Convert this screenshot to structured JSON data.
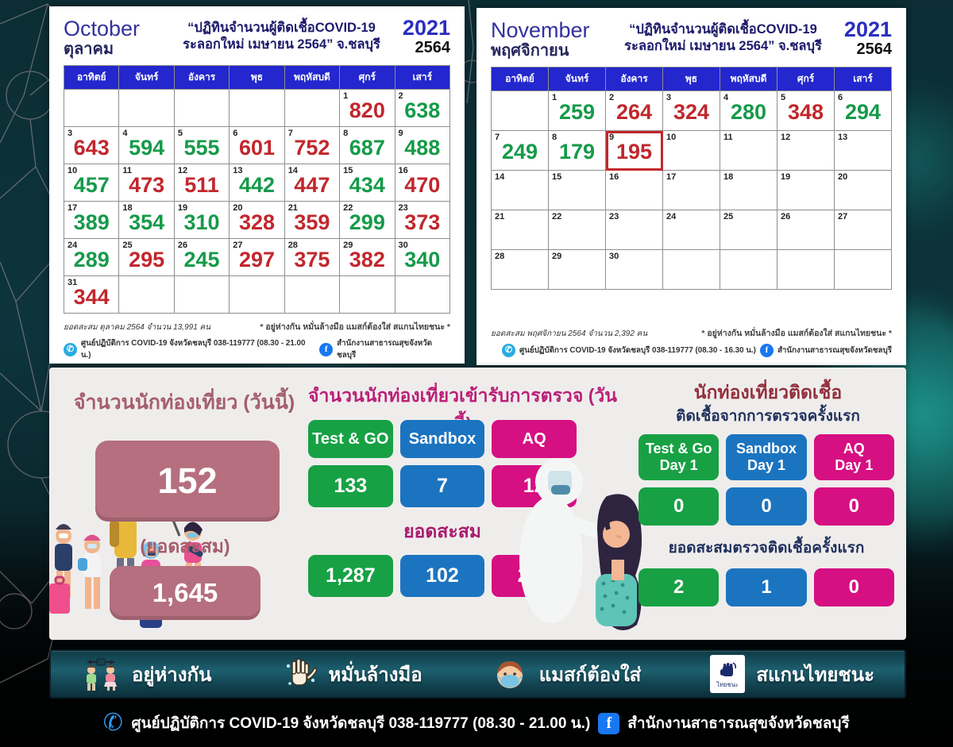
{
  "calendars": [
    {
      "month_en": "October",
      "month_th": "ตุลาคม",
      "title_line1": "“ปฏิทินจำนวนผู้ติดเชื้อCOVID-19",
      "title_line2": "ระลอกใหม่ เมษายน 2564” จ.ชลบุรี",
      "year_en": "2021",
      "year_th": "2564",
      "day_headers": [
        "อาทิตย์",
        "จันทร์",
        "อังคาร",
        "พุธ",
        "พฤหัสบดี",
        "ศุกร์",
        "เสาร์"
      ],
      "weeks": [
        [
          {},
          {},
          {},
          {},
          {},
          {
            "d": "1",
            "v": "820",
            "c": "red"
          },
          {
            "d": "2",
            "v": "638",
            "c": "green"
          }
        ],
        [
          {
            "d": "3",
            "v": "643",
            "c": "red"
          },
          {
            "d": "4",
            "v": "594",
            "c": "green"
          },
          {
            "d": "5",
            "v": "555",
            "c": "green"
          },
          {
            "d": "6",
            "v": "601",
            "c": "red"
          },
          {
            "d": "7",
            "v": "752",
            "c": "red"
          },
          {
            "d": "8",
            "v": "687",
            "c": "green"
          },
          {
            "d": "9",
            "v": "488",
            "c": "green"
          }
        ],
        [
          {
            "d": "10",
            "v": "457",
            "c": "green"
          },
          {
            "d": "11",
            "v": "473",
            "c": "red"
          },
          {
            "d": "12",
            "v": "511",
            "c": "red"
          },
          {
            "d": "13",
            "v": "442",
            "c": "green"
          },
          {
            "d": "14",
            "v": "447",
            "c": "red"
          },
          {
            "d": "15",
            "v": "434",
            "c": "green"
          },
          {
            "d": "16",
            "v": "470",
            "c": "red"
          }
        ],
        [
          {
            "d": "17",
            "v": "389",
            "c": "green"
          },
          {
            "d": "18",
            "v": "354",
            "c": "green"
          },
          {
            "d": "19",
            "v": "310",
            "c": "green"
          },
          {
            "d": "20",
            "v": "328",
            "c": "red"
          },
          {
            "d": "21",
            "v": "359",
            "c": "red"
          },
          {
            "d": "22",
            "v": "299",
            "c": "green"
          },
          {
            "d": "23",
            "v": "373",
            "c": "red"
          }
        ],
        [
          {
            "d": "24",
            "v": "289",
            "c": "green"
          },
          {
            "d": "25",
            "v": "295",
            "c": "red"
          },
          {
            "d": "26",
            "v": "245",
            "c": "green"
          },
          {
            "d": "27",
            "v": "297",
            "c": "red"
          },
          {
            "d": "28",
            "v": "375",
            "c": "red"
          },
          {
            "d": "29",
            "v": "382",
            "c": "red"
          },
          {
            "d": "30",
            "v": "340",
            "c": "green"
          }
        ],
        [
          {
            "d": "31",
            "v": "344",
            "c": "red"
          },
          {},
          {},
          {},
          {},
          {},
          {}
        ]
      ],
      "summary": "ยอดสะสม ตุลาคม 2564 จำนวน 13,991 คน",
      "advice": "* อยู่ห่างกัน หมั่นล้างมือ แมสก์ต้องใส่ สแกนไทยชนะ *",
      "phone_line": "ศูนย์ปฏิบัติการ COVID-19 จังหวัดชลบุรี 038-119777 (08.30 - 21.00 น.)",
      "fb_line": "สำนักงานสาธารณสุขจังหวัดชลบุรี"
    },
    {
      "month_en": "November",
      "month_th": "พฤศจิกายน",
      "title_line1": "“ปฏิทินจำนวนผู้ติดเชื้อCOVID-19",
      "title_line2": "ระลอกใหม่ เมษายน 2564” จ.ชลบุรี",
      "year_en": "2021",
      "year_th": "2564",
      "day_headers": [
        "อาทิตย์",
        "จันทร์",
        "อังคาร",
        "พุธ",
        "พฤหัสบดี",
        "ศุกร์",
        "เสาร์"
      ],
      "weeks": [
        [
          {},
          {
            "d": "1",
            "v": "259",
            "c": "green"
          },
          {
            "d": "2",
            "v": "264",
            "c": "red"
          },
          {
            "d": "3",
            "v": "324",
            "c": "red"
          },
          {
            "d": "4",
            "v": "280",
            "c": "green"
          },
          {
            "d": "5",
            "v": "348",
            "c": "red"
          },
          {
            "d": "6",
            "v": "294",
            "c": "green"
          }
        ],
        [
          {
            "d": "7",
            "v": "249",
            "c": "green"
          },
          {
            "d": "8",
            "v": "179",
            "c": "green"
          },
          {
            "d": "9",
            "v": "195",
            "c": "red",
            "box": true
          },
          {
            "d": "10"
          },
          {
            "d": "11"
          },
          {
            "d": "12"
          },
          {
            "d": "13"
          }
        ],
        [
          {
            "d": "14"
          },
          {
            "d": "15"
          },
          {
            "d": "16"
          },
          {
            "d": "17"
          },
          {
            "d": "18"
          },
          {
            "d": "19"
          },
          {
            "d": "20"
          }
        ],
        [
          {
            "d": "21"
          },
          {
            "d": "22"
          },
          {
            "d": "23"
          },
          {
            "d": "24"
          },
          {
            "d": "25"
          },
          {
            "d": "26"
          },
          {
            "d": "27"
          }
        ],
        [
          {
            "d": "28"
          },
          {
            "d": "29"
          },
          {
            "d": "30"
          },
          {},
          {},
          {},
          {}
        ]
      ],
      "summary": "ยอดสะสม พฤศจิกายน 2564 จำนวน 2,392 คน",
      "advice": "* อยู่ห่างกัน หมั่นล้างมือ แมสก์ต้องใส่ สแกนไทยชนะ *",
      "phone_line": "ศูนย์ปฏิบัติการ COVID-19 จังหวัดชลบุรี 038-119777 (08.30 - 16.30 น.)",
      "fb_line": "สำนักงานสาธารณสุขจังหวัดชลบุรี"
    }
  ],
  "tourists": {
    "title": "จำนวนนักท่องเที่ยว (วันนี้)",
    "today": "152",
    "cumulative_label": "(ยอดสะสม)",
    "cumulative": "1,645"
  },
  "tested": {
    "title": "จำนวนนักท่องเที่ยวเข้ารับการตรวจ (วันนี้)",
    "cumulative_label": "ยอดสะสม",
    "columns": [
      {
        "label": "Test & GO",
        "color": "#17a144",
        "today": "133",
        "cumulative": "1,287"
      },
      {
        "label": "Sandbox",
        "color": "#1b74c0",
        "today": "7",
        "cumulative": "102"
      },
      {
        "label": "AQ",
        "color": "#d60f82",
        "today": "12",
        "cumulative": "256"
      }
    ]
  },
  "infected": {
    "title": "นักท่องเที่ยวติดเชื้อ",
    "subtitle": "ติดเชื้อจากการตรวจครั้งแรก",
    "cumulative_label": "ยอดสะสมตรวจติดเชื้อครั้งแรก",
    "columns": [
      {
        "label": "Test & Go\nDay 1",
        "color": "#17a144",
        "today": "0",
        "cumulative": "2"
      },
      {
        "label": "Sandbox\nDay 1",
        "color": "#1b74c0",
        "today": "0",
        "cumulative": "1"
      },
      {
        "label": "AQ\nDay 1",
        "color": "#d60f82",
        "today": "0",
        "cumulative": "0"
      }
    ]
  },
  "banner": {
    "thai_chana_text": "ไทยชนะ",
    "items": [
      {
        "icon": "social-distance-icon",
        "label": "อยู่ห่างกัน"
      },
      {
        "icon": "hand-wash-icon",
        "label": "หมั่นล้างมือ"
      },
      {
        "icon": "mask-face-icon",
        "label": "แมสก์ต้องใส่"
      },
      {
        "icon": "thai-chana-icon",
        "label": "สแกนไทยชนะ"
      }
    ]
  },
  "footer": {
    "phone": "ศูนย์ปฏิบัติการ COVID-19 จังหวัดชลบุรี 038-119777 (08.30 - 21.00 น.)",
    "facebook": "สำนักงานสาธารณสุขจังหวัดชลบุรี"
  },
  "colors": {
    "green_value": "#169a4a",
    "red_value": "#c1272d",
    "header_blue": "#2327cd",
    "rose_box": "#b56f7e"
  }
}
